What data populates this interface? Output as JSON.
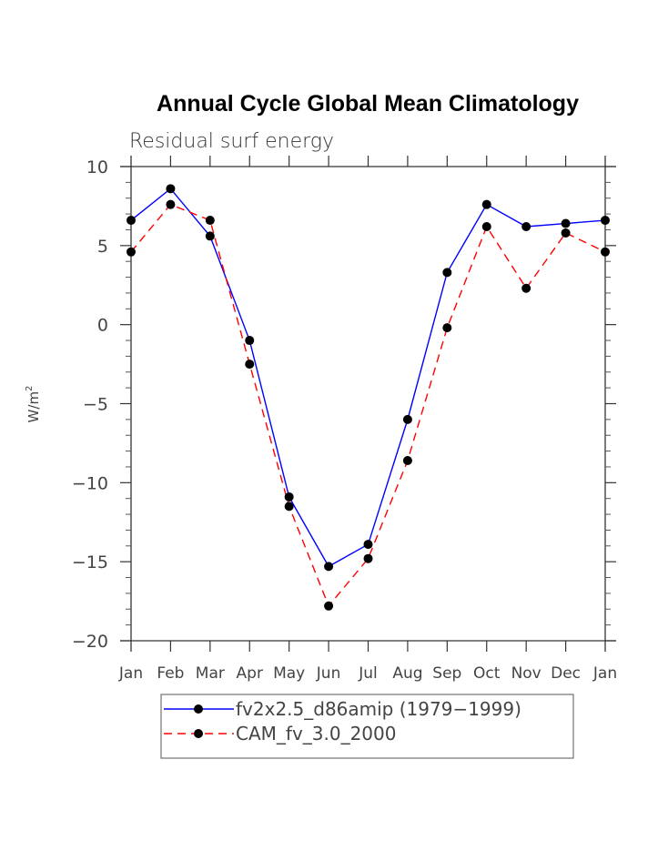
{
  "chart_data": {
    "type": "line",
    "title": "Annual Cycle Global Mean Climatology",
    "subtitle": "Residual surf energy",
    "xlabel": "",
    "ylabel": "W/m",
    "ylabel_superscript": "2",
    "categories": [
      "Jan",
      "Feb",
      "Mar",
      "Apr",
      "May",
      "Jun",
      "Jul",
      "Aug",
      "Sep",
      "Oct",
      "Nov",
      "Dec",
      "Jan"
    ],
    "ylim": [
      -20,
      10
    ],
    "yticks": [
      10,
      5,
      0,
      -5,
      -10,
      -15,
      -20
    ],
    "ytick_labels": [
      "10",
      "5",
      "0",
      "−5",
      "−10",
      "−15",
      "−20"
    ],
    "y_minor_step": 1,
    "grid": false,
    "legend_position": "bottom",
    "series": [
      {
        "name": "fv2x2.5_d86amip (1979−1999)",
        "color": "#0000ff",
        "style": "solid",
        "marker": "filled-circle",
        "values": [
          6.6,
          8.6,
          5.6,
          -1.0,
          -10.9,
          -15.3,
          -13.9,
          -6.0,
          3.3,
          7.6,
          6.2,
          6.4,
          6.6
        ]
      },
      {
        "name": "CAM_fv_3.0_2000",
        "color": "#ff0000",
        "style": "dashed",
        "marker": "filled-circle",
        "values": [
          4.6,
          7.6,
          6.6,
          -2.5,
          -11.5,
          -17.8,
          -14.8,
          -8.6,
          -0.2,
          6.2,
          2.3,
          5.8,
          4.6
        ]
      }
    ]
  }
}
